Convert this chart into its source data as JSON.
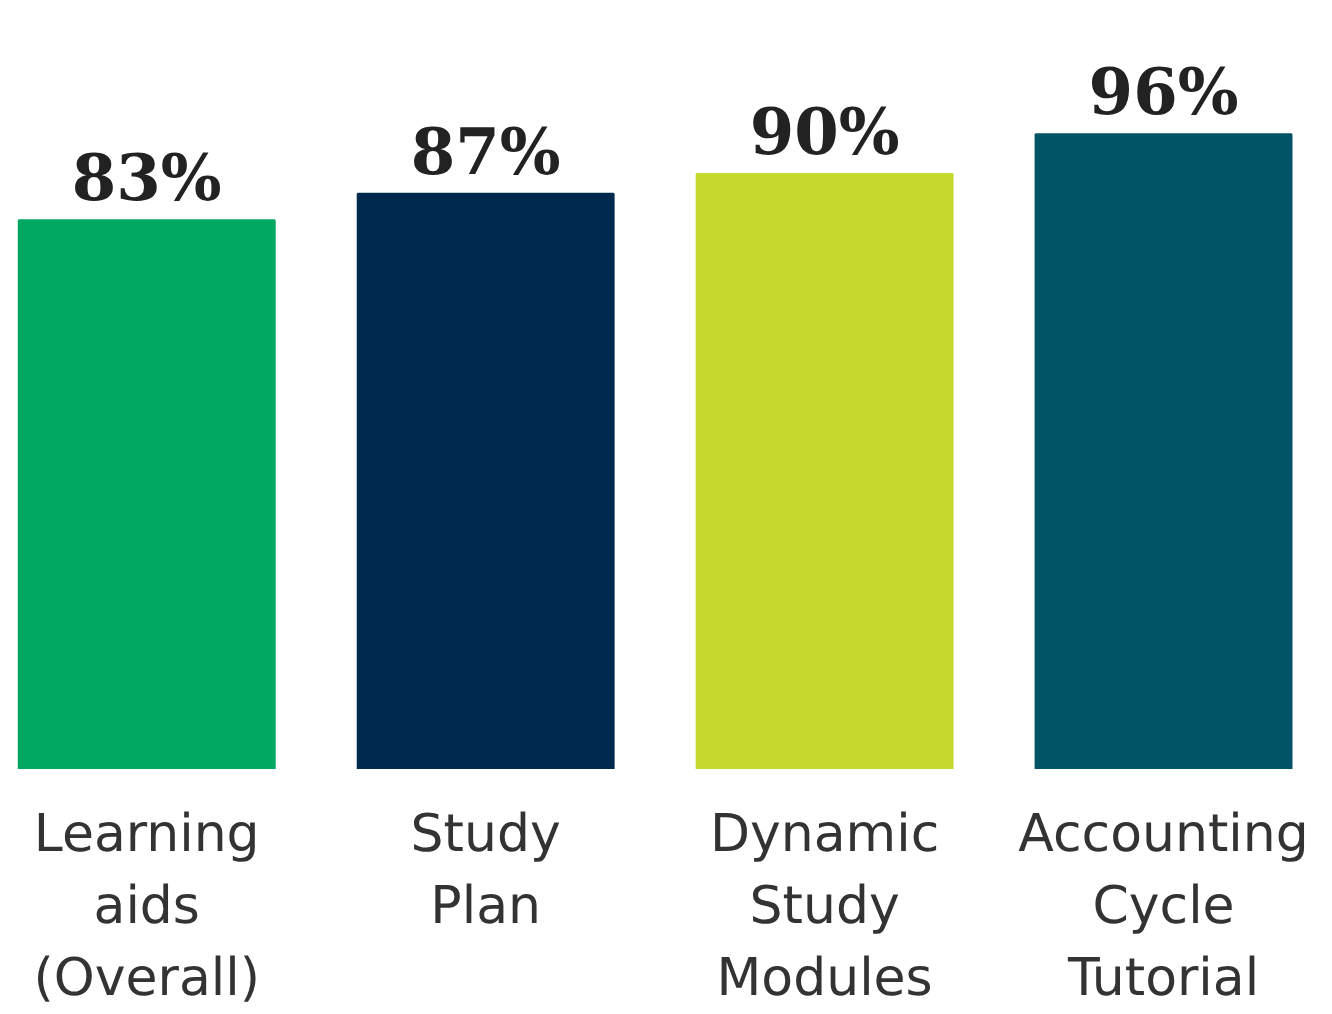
{
  "chart_data": {
    "type": "bar",
    "categories": [
      "Learning aids (Overall)",
      "Study Plan",
      "Dynamic Study Modules",
      "Accounting Cycle Tutorial"
    ],
    "values": [
      83,
      87,
      90,
      96
    ],
    "colors": [
      "#00a862",
      "#002a4d",
      "#c5d92d",
      "#005466"
    ],
    "value_labels": [
      "83%",
      "87%",
      "90%",
      "96%"
    ],
    "tick_labels": "x",
    "grid": false
  }
}
